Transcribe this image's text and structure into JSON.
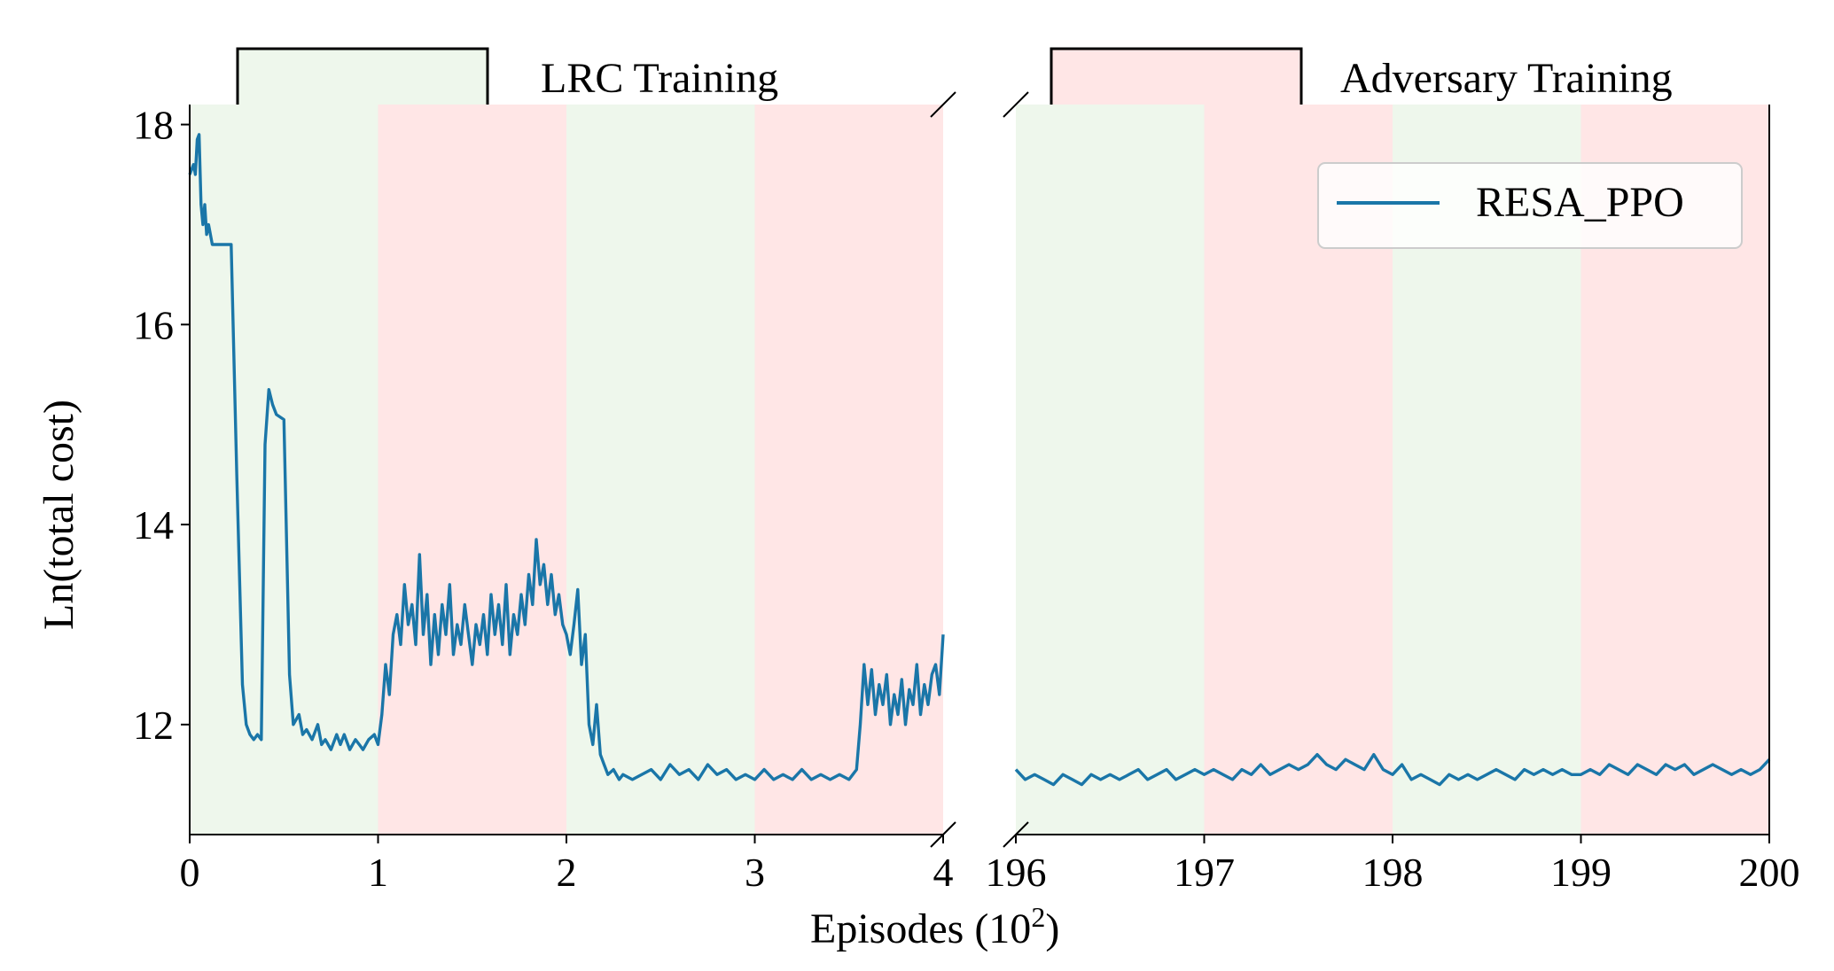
{
  "chart_data": {
    "type": "line",
    "title": "",
    "xlabel_main": "Episodes (10",
    "xlabel_exp": "2",
    "xlabel_tail": ")",
    "ylabel": "Ln(total cost)",
    "ylim": [
      10.9,
      18.2
    ],
    "yticks": [
      12,
      14,
      16,
      18
    ],
    "broken_x_axis": true,
    "panels": [
      {
        "name": "left",
        "xlim": [
          0,
          4
        ],
        "xticks": [
          0,
          1,
          2,
          3,
          4
        ]
      },
      {
        "name": "right",
        "xlim": [
          196,
          200
        ],
        "xticks": [
          196,
          197,
          198,
          199,
          200
        ]
      }
    ],
    "phase_legend": [
      {
        "label": "LRC Training",
        "color": "#eef7ec"
      },
      {
        "label": "Adversary Training",
        "color": "#ffe6e6"
      }
    ],
    "phases": [
      {
        "start": 0,
        "end": 1,
        "phase": "LRC Training"
      },
      {
        "start": 1,
        "end": 2,
        "phase": "Adversary Training"
      },
      {
        "start": 2,
        "end": 3,
        "phase": "LRC Training"
      },
      {
        "start": 3,
        "end": 4,
        "phase": "Adversary Training"
      },
      {
        "start": 196,
        "end": 197,
        "phase": "LRC Training"
      },
      {
        "start": 197,
        "end": 198,
        "phase": "Adversary Training"
      },
      {
        "start": 198,
        "end": 199,
        "phase": "LRC Training"
      },
      {
        "start": 199,
        "end": 200,
        "phase": "Adversary Training"
      }
    ],
    "series": [
      {
        "name": "RESA_PPO",
        "color": "#1a76a8",
        "left": [
          [
            0.0,
            17.5
          ],
          [
            0.02,
            17.6
          ],
          [
            0.03,
            17.5
          ],
          [
            0.04,
            17.85
          ],
          [
            0.05,
            17.9
          ],
          [
            0.06,
            17.2
          ],
          [
            0.07,
            17.0
          ],
          [
            0.08,
            17.2
          ],
          [
            0.09,
            16.9
          ],
          [
            0.1,
            17.0
          ],
          [
            0.12,
            16.8
          ],
          [
            0.2,
            16.8
          ],
          [
            0.22,
            16.8
          ],
          [
            0.25,
            14.5
          ],
          [
            0.28,
            12.4
          ],
          [
            0.3,
            12.0
          ],
          [
            0.32,
            11.9
          ],
          [
            0.34,
            11.85
          ],
          [
            0.36,
            11.9
          ],
          [
            0.38,
            11.85
          ],
          [
            0.4,
            14.8
          ],
          [
            0.42,
            15.35
          ],
          [
            0.44,
            15.2
          ],
          [
            0.46,
            15.1
          ],
          [
            0.5,
            15.05
          ],
          [
            0.53,
            12.5
          ],
          [
            0.55,
            12.0
          ],
          [
            0.58,
            12.1
          ],
          [
            0.6,
            11.9
          ],
          [
            0.62,
            11.95
          ],
          [
            0.65,
            11.85
          ],
          [
            0.68,
            12.0
          ],
          [
            0.7,
            11.8
          ],
          [
            0.72,
            11.85
          ],
          [
            0.75,
            11.75
          ],
          [
            0.78,
            11.9
          ],
          [
            0.8,
            11.8
          ],
          [
            0.82,
            11.9
          ],
          [
            0.85,
            11.75
          ],
          [
            0.88,
            11.85
          ],
          [
            0.9,
            11.8
          ],
          [
            0.92,
            11.75
          ],
          [
            0.95,
            11.85
          ],
          [
            0.98,
            11.9
          ],
          [
            1.0,
            11.8
          ],
          [
            1.02,
            12.1
          ],
          [
            1.04,
            12.6
          ],
          [
            1.06,
            12.3
          ],
          [
            1.08,
            12.9
          ],
          [
            1.1,
            13.1
          ],
          [
            1.12,
            12.8
          ],
          [
            1.14,
            13.4
          ],
          [
            1.16,
            13.0
          ],
          [
            1.18,
            13.2
          ],
          [
            1.2,
            12.8
          ],
          [
            1.22,
            13.7
          ],
          [
            1.24,
            12.9
          ],
          [
            1.26,
            13.3
          ],
          [
            1.28,
            12.6
          ],
          [
            1.3,
            13.1
          ],
          [
            1.32,
            12.7
          ],
          [
            1.34,
            13.2
          ],
          [
            1.36,
            12.9
          ],
          [
            1.38,
            13.4
          ],
          [
            1.4,
            12.7
          ],
          [
            1.42,
            13.0
          ],
          [
            1.44,
            12.8
          ],
          [
            1.46,
            13.2
          ],
          [
            1.48,
            12.9
          ],
          [
            1.5,
            12.6
          ],
          [
            1.52,
            13.0
          ],
          [
            1.54,
            12.8
          ],
          [
            1.56,
            13.1
          ],
          [
            1.58,
            12.7
          ],
          [
            1.6,
            13.3
          ],
          [
            1.62,
            12.9
          ],
          [
            1.64,
            13.2
          ],
          [
            1.66,
            12.8
          ],
          [
            1.68,
            13.4
          ],
          [
            1.7,
            12.7
          ],
          [
            1.72,
            13.1
          ],
          [
            1.74,
            12.9
          ],
          [
            1.76,
            13.3
          ],
          [
            1.78,
            13.0
          ],
          [
            1.8,
            13.5
          ],
          [
            1.82,
            13.2
          ],
          [
            1.84,
            13.85
          ],
          [
            1.86,
            13.4
          ],
          [
            1.88,
            13.6
          ],
          [
            1.9,
            13.2
          ],
          [
            1.92,
            13.5
          ],
          [
            1.94,
            13.1
          ],
          [
            1.96,
            13.3
          ],
          [
            1.98,
            13.0
          ],
          [
            2.0,
            12.9
          ],
          [
            2.02,
            12.7
          ],
          [
            2.04,
            13.0
          ],
          [
            2.06,
            13.35
          ],
          [
            2.08,
            12.6
          ],
          [
            2.1,
            12.9
          ],
          [
            2.12,
            12.0
          ],
          [
            2.14,
            11.8
          ],
          [
            2.16,
            12.2
          ],
          [
            2.18,
            11.7
          ],
          [
            2.2,
            11.6
          ],
          [
            2.22,
            11.5
          ],
          [
            2.25,
            11.55
          ],
          [
            2.28,
            11.45
          ],
          [
            2.3,
            11.5
          ],
          [
            2.35,
            11.45
          ],
          [
            2.4,
            11.5
          ],
          [
            2.45,
            11.55
          ],
          [
            2.5,
            11.45
          ],
          [
            2.55,
            11.6
          ],
          [
            2.6,
            11.5
          ],
          [
            2.65,
            11.55
          ],
          [
            2.7,
            11.45
          ],
          [
            2.75,
            11.6
          ],
          [
            2.8,
            11.5
          ],
          [
            2.85,
            11.55
          ],
          [
            2.9,
            11.45
          ],
          [
            2.95,
            11.5
          ],
          [
            3.0,
            11.45
          ],
          [
            3.05,
            11.55
          ],
          [
            3.1,
            11.45
          ],
          [
            3.15,
            11.5
          ],
          [
            3.2,
            11.45
          ],
          [
            3.25,
            11.55
          ],
          [
            3.3,
            11.45
          ],
          [
            3.35,
            11.5
          ],
          [
            3.4,
            11.45
          ],
          [
            3.45,
            11.5
          ],
          [
            3.5,
            11.45
          ],
          [
            3.52,
            11.5
          ],
          [
            3.54,
            11.55
          ],
          [
            3.56,
            12.0
          ],
          [
            3.58,
            12.6
          ],
          [
            3.6,
            12.2
          ],
          [
            3.62,
            12.55
          ],
          [
            3.64,
            12.1
          ],
          [
            3.66,
            12.4
          ],
          [
            3.68,
            12.2
          ],
          [
            3.7,
            12.5
          ],
          [
            3.72,
            12.0
          ],
          [
            3.74,
            12.3
          ],
          [
            3.76,
            12.1
          ],
          [
            3.78,
            12.45
          ],
          [
            3.8,
            12.0
          ],
          [
            3.82,
            12.35
          ],
          [
            3.84,
            12.2
          ],
          [
            3.86,
            12.6
          ],
          [
            3.88,
            12.1
          ],
          [
            3.9,
            12.4
          ],
          [
            3.92,
            12.2
          ],
          [
            3.94,
            12.5
          ],
          [
            3.96,
            12.6
          ],
          [
            3.98,
            12.3
          ],
          [
            4.0,
            12.9
          ]
        ],
        "right": [
          [
            196.0,
            11.55
          ],
          [
            196.05,
            11.45
          ],
          [
            196.1,
            11.5
          ],
          [
            196.15,
            11.45
          ],
          [
            196.2,
            11.4
          ],
          [
            196.25,
            11.5
          ],
          [
            196.3,
            11.45
          ],
          [
            196.35,
            11.4
          ],
          [
            196.4,
            11.5
          ],
          [
            196.45,
            11.45
          ],
          [
            196.5,
            11.5
          ],
          [
            196.55,
            11.45
          ],
          [
            196.6,
            11.5
          ],
          [
            196.65,
            11.55
          ],
          [
            196.7,
            11.45
          ],
          [
            196.75,
            11.5
          ],
          [
            196.8,
            11.55
          ],
          [
            196.85,
            11.45
          ],
          [
            196.9,
            11.5
          ],
          [
            196.95,
            11.55
          ],
          [
            197.0,
            11.5
          ],
          [
            197.05,
            11.55
          ],
          [
            197.1,
            11.5
          ],
          [
            197.15,
            11.45
          ],
          [
            197.2,
            11.55
          ],
          [
            197.25,
            11.5
          ],
          [
            197.3,
            11.6
          ],
          [
            197.35,
            11.5
          ],
          [
            197.4,
            11.55
          ],
          [
            197.45,
            11.6
          ],
          [
            197.5,
            11.55
          ],
          [
            197.55,
            11.6
          ],
          [
            197.6,
            11.7
          ],
          [
            197.65,
            11.6
          ],
          [
            197.7,
            11.55
          ],
          [
            197.75,
            11.65
          ],
          [
            197.8,
            11.6
          ],
          [
            197.85,
            11.55
          ],
          [
            197.9,
            11.7
          ],
          [
            197.95,
            11.55
          ],
          [
            198.0,
            11.5
          ],
          [
            198.05,
            11.6
          ],
          [
            198.1,
            11.45
          ],
          [
            198.15,
            11.5
          ],
          [
            198.2,
            11.45
          ],
          [
            198.25,
            11.4
          ],
          [
            198.3,
            11.5
          ],
          [
            198.35,
            11.45
          ],
          [
            198.4,
            11.5
          ],
          [
            198.45,
            11.45
          ],
          [
            198.5,
            11.5
          ],
          [
            198.55,
            11.55
          ],
          [
            198.6,
            11.5
          ],
          [
            198.65,
            11.45
          ],
          [
            198.7,
            11.55
          ],
          [
            198.75,
            11.5
          ],
          [
            198.8,
            11.55
          ],
          [
            198.85,
            11.5
          ],
          [
            198.9,
            11.55
          ],
          [
            198.95,
            11.5
          ],
          [
            199.0,
            11.5
          ],
          [
            199.05,
            11.55
          ],
          [
            199.1,
            11.5
          ],
          [
            199.15,
            11.6
          ],
          [
            199.2,
            11.55
          ],
          [
            199.25,
            11.5
          ],
          [
            199.3,
            11.6
          ],
          [
            199.35,
            11.55
          ],
          [
            199.4,
            11.5
          ],
          [
            199.45,
            11.6
          ],
          [
            199.5,
            11.55
          ],
          [
            199.55,
            11.6
          ],
          [
            199.6,
            11.5
          ],
          [
            199.65,
            11.55
          ],
          [
            199.7,
            11.6
          ],
          [
            199.75,
            11.55
          ],
          [
            199.8,
            11.5
          ],
          [
            199.85,
            11.55
          ],
          [
            199.9,
            11.5
          ],
          [
            199.95,
            11.55
          ],
          [
            200.0,
            11.65
          ]
        ]
      }
    ]
  }
}
